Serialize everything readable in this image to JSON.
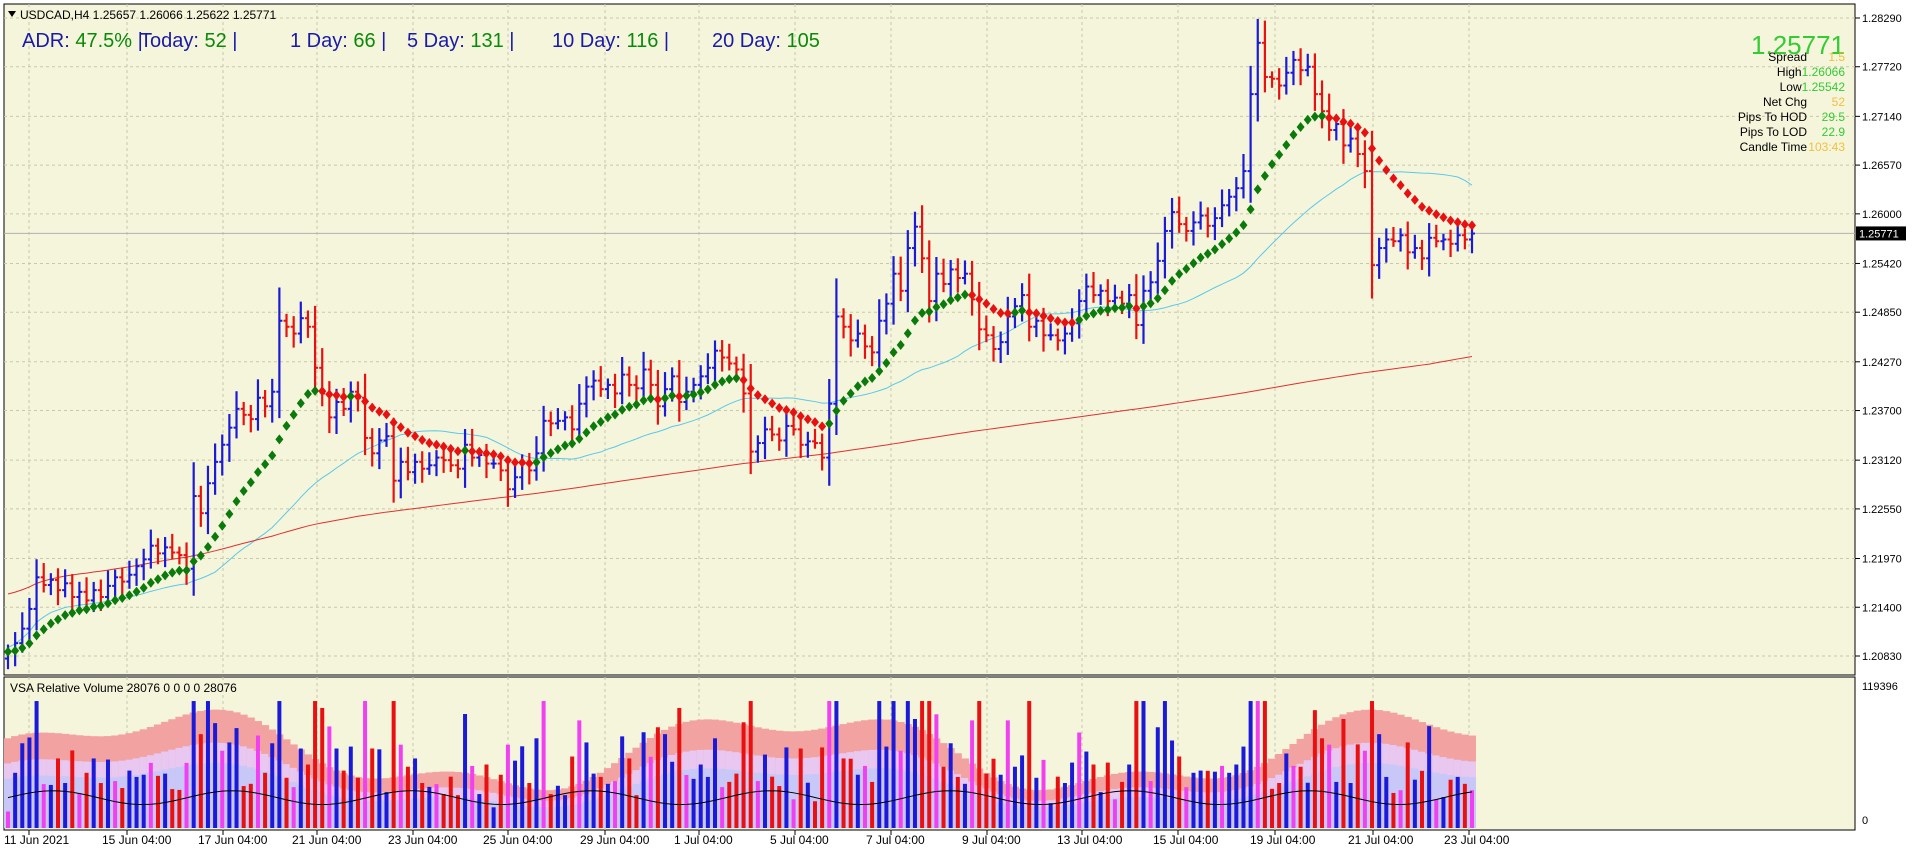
{
  "header": {
    "symbol_line": "USDCAD,H4  1.25657 1.26066 1.25622 1.25771",
    "adr": [
      {
        "label": "ADR: ",
        "value": "47.5%",
        "sep": "|"
      },
      {
        "label": "Today: ",
        "value": "52",
        "sep": "|"
      },
      {
        "label": "1 Day: ",
        "value": "66",
        "sep": "|"
      },
      {
        "label": "5 Day: ",
        "value": "131",
        "sep": "|"
      },
      {
        "label": "10 Day: ",
        "value": "116",
        "sep": "|"
      },
      {
        "label": "20 Day: ",
        "value": "105",
        "sep": ""
      }
    ]
  },
  "info_panel": {
    "price": "1.25771",
    "rows": [
      {
        "label": "Spread",
        "value": "1.5",
        "color": "#f0c040"
      },
      {
        "label": "High",
        "value": "1.26066",
        "color": "#33cc33"
      },
      {
        "label": "Low",
        "value": "1.25542",
        "color": "#33cc33"
      },
      {
        "label": "Net Chg",
        "value": "52",
        "color": "#f0c040"
      },
      {
        "label": "Pips To HOD",
        "value": "29.5",
        "color": "#33cc33"
      },
      {
        "label": "Pips To LOD",
        "value": "22.9",
        "color": "#33cc33"
      },
      {
        "label": "Candle Time",
        "value": "103:43",
        "color": "#f0c040"
      }
    ]
  },
  "volume_panel": {
    "title": "VSA Relative Volume 28076 0 0 0 0 28076",
    "axis_max": "119396",
    "axis_min": "0"
  },
  "colors": {
    "background": "#f5f5dc",
    "grid": "#c8c8a8",
    "bull_bar": "#1a1ad8",
    "bear_bar": "#e81010",
    "ma_fast": "#5ac8e8",
    "ma_slow": "#e03030",
    "trend_up": "#0a7a0a",
    "trend_down": "#e81010",
    "vol_bg1": "#f3a2a2",
    "vol_bg2": "#e8c8f0",
    "vol_bg3": "#c8c8f8",
    "vol_bull": "#1a1ad8",
    "vol_bear": "#e81010",
    "vol_magenta": "#f040f0",
    "current_price_label_bg": "#000000"
  },
  "chart_data": {
    "type": "candlestick",
    "instrument": "USDCAD",
    "timeframe": "H4",
    "y_ticks": [
      "1.28290",
      "1.27720",
      "1.27140",
      "1.26570",
      "1.26000",
      "1.25420",
      "1.24850",
      "1.24270",
      "1.23700",
      "1.23120",
      "1.22550",
      "1.21970",
      "1.21400",
      "1.20830"
    ],
    "current_price": "1.25771",
    "x_ticks": [
      "11 Jun 2021",
      "15 Jun 04:00",
      "17 Jun 04:00",
      "21 Jun 04:00",
      "23 Jun 04:00",
      "25 Jun 04:00",
      "29 Jun 04:00",
      "1 Jul 04:00",
      "5 Jul 04:00",
      "7 Jul 04:00",
      "9 Jul 04:00",
      "13 Jul 04:00",
      "15 Jul 04:00",
      "19 Jul 04:00",
      "21 Jul 04:00",
      "23 Jul 04:00"
    ],
    "close": [
      1.2088,
      1.2098,
      1.2115,
      1.2138,
      1.2175,
      1.2166,
      1.2172,
      1.216,
      1.2168,
      1.2152,
      1.2158,
      1.2148,
      1.216,
      1.2152,
      1.2165,
      1.2175,
      1.217,
      1.2178,
      1.2188,
      1.2196,
      1.2212,
      1.2203,
      1.221,
      1.2204,
      1.2201,
      1.2185,
      1.227,
      1.225,
      1.2285,
      1.231,
      1.233,
      1.235,
      1.2372,
      1.2365,
      1.236,
      1.2385,
      1.2375,
      1.2392,
      1.2475,
      1.2468,
      1.246,
      1.2478,
      1.2468,
      1.242,
      1.239,
      1.2362,
      1.238,
      1.2372,
      1.2392,
      1.2385,
      1.2338,
      1.232,
      1.2335,
      1.234,
      1.2288,
      1.231,
      1.2298,
      1.231,
      1.2302,
      1.2306,
      1.2315,
      1.2312,
      1.2306,
      1.2302,
      1.233,
      1.2315,
      1.2318,
      1.2308,
      1.2308,
      1.23,
      1.2278,
      1.2292,
      1.2308,
      1.23,
      1.232,
      1.2358,
      1.2355,
      1.2358,
      1.2362,
      1.2348,
      1.2378,
      1.2398,
      1.2405,
      1.2395,
      1.24,
      1.239,
      1.2412,
      1.24,
      1.2396,
      1.2418,
      1.24,
      1.2375,
      1.2395,
      1.241,
      1.238,
      1.2392,
      1.24,
      1.241,
      1.242,
      1.244,
      1.2432,
      1.2425,
      1.2418,
      1.239,
      1.2322,
      1.2332,
      1.2348,
      1.2342,
      1.2335,
      1.2352,
      1.2348,
      1.233,
      1.2334,
      1.2332,
      1.2315,
      1.2378,
      1.248,
      1.2468,
      1.2452,
      1.246,
      1.2445,
      1.2438,
      1.2475,
      1.2495,
      1.253,
      1.251,
      1.256,
      1.2585,
      1.2548,
      1.2498,
      1.253,
      1.2518,
      1.2535,
      1.2525,
      1.253,
      1.25,
      1.2465,
      1.2458,
      1.2442,
      1.245,
      1.248,
      1.2492,
      1.2505,
      1.2468,
      1.2475,
      1.2458,
      1.2458,
      1.2452,
      1.246,
      1.2472,
      1.2498,
      1.2515,
      1.2505,
      1.251,
      1.2498,
      1.2502,
      1.2495,
      1.2505,
      1.247,
      1.251,
      1.252,
      1.2545,
      1.258,
      1.2602,
      1.2588,
      1.258,
      1.259,
      1.2598,
      1.2586,
      1.2595,
      1.261,
      1.262,
      1.263,
      1.265,
      1.274,
      1.28,
      1.276,
      1.2758,
      1.275,
      1.2765,
      1.278,
      1.2768,
      1.2772,
      1.274,
      1.272,
      1.2698,
      1.2705,
      1.268,
      1.2688,
      1.267,
      1.265,
      1.254,
      1.256,
      1.257,
      1.2568,
      1.2575,
      1.2555,
      1.256,
      1.2548,
      1.2572,
      1.2568,
      1.257,
      1.2565,
      1.2575,
      1.257,
      1.2577
    ],
    "ma_fast_start": 1.2112,
    "ma_fast_end": 1.2584,
    "ma_slow_start": 1.2178,
    "ma_slow_end": 1.2433,
    "trend_line_start": 1.2088,
    "trend_line_end": 1.2608
  }
}
